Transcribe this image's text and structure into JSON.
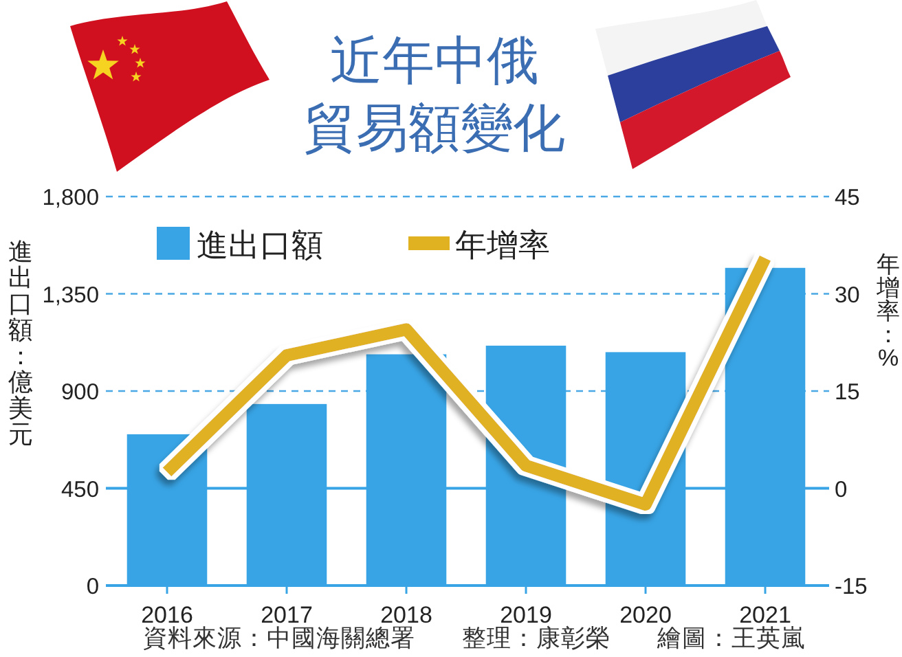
{
  "chart_data": {
    "type": "bar",
    "title": "近年中俄貿易額變化",
    "ylabel": "進出口額：億美元",
    "y2label": "年增率：%",
    "categories": [
      "2016",
      "2017",
      "2018",
      "2019",
      "2020",
      "2021"
    ],
    "series": [
      {
        "name": "進出口額",
        "color": "#38a4e5",
        "values": [
          700,
          840,
          1070,
          1110,
          1080,
          1470
        ]
      },
      {
        "name": "年增率",
        "type": "line",
        "axis": "y2",
        "color": "#e0b120",
        "values": [
          2.5,
          20.5,
          24.5,
          3.5,
          -2.5,
          35.5
        ]
      }
    ],
    "ylim": [
      0,
      1800
    ],
    "yticks": [
      0,
      450,
      900,
      {
        "value": 1350,
        "label": "1,350"
      },
      {
        "value": 1800,
        "label": "1,800"
      }
    ],
    "y2lim": [
      -15,
      45
    ],
    "y2ticks": [
      -15,
      0,
      15,
      30,
      45
    ],
    "grid": "y",
    "ref_lines": [
      {
        "axis": "y2",
        "value": 0,
        "color": "#38a4e5",
        "line_style": "solid"
      }
    ],
    "legend": "top left",
    "annotations": [
      "資料來源：中國海關總署",
      "整理：康彰榮",
      "繪圖：王英嵐"
    ]
  }
}
